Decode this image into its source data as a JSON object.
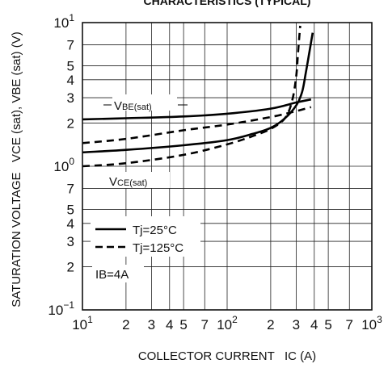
{
  "chart_data": {
    "type": "line",
    "title": "CHARACTERISTICS (TYPICAL)",
    "xlabel": "COLLECTOR CURRENT   IC (A)",
    "ylabel": "SATURATION VOLTAGE   VCE (sat), VBE (sat) (V)",
    "x_scale": "log",
    "y_scale": "log",
    "xlim": [
      10,
      1000
    ],
    "ylim": [
      0.1,
      10
    ],
    "grid": true,
    "x_ticks": [
      {
        "value": 10,
        "base": "10",
        "exp": "1"
      },
      {
        "value": 20,
        "base": "2",
        "exp": ""
      },
      {
        "value": 30,
        "base": "3",
        "exp": ""
      },
      {
        "value": 40,
        "base": "4",
        "exp": ""
      },
      {
        "value": 50,
        "base": "5",
        "exp": ""
      },
      {
        "value": 70,
        "base": "7",
        "exp": ""
      },
      {
        "value": 100,
        "base": "10",
        "exp": "2"
      },
      {
        "value": 200,
        "base": "2",
        "exp": ""
      },
      {
        "value": 300,
        "base": "3",
        "exp": ""
      },
      {
        "value": 400,
        "base": "4",
        "exp": ""
      },
      {
        "value": 500,
        "base": "5",
        "exp": ""
      },
      {
        "value": 700,
        "base": "7",
        "exp": ""
      },
      {
        "value": 1000,
        "base": "10",
        "exp": "3"
      }
    ],
    "y_ticks": [
      {
        "value": 10,
        "base": "10",
        "exp": "1"
      },
      {
        "value": 7,
        "base": "7",
        "exp": ""
      },
      {
        "value": 5,
        "base": "5",
        "exp": ""
      },
      {
        "value": 4,
        "base": "4",
        "exp": ""
      },
      {
        "value": 3,
        "base": "3",
        "exp": ""
      },
      {
        "value": 2,
        "base": "2",
        "exp": ""
      },
      {
        "value": 1,
        "base": "10",
        "exp": "0"
      },
      {
        "value": 0.7,
        "base": "7",
        "exp": ""
      },
      {
        "value": 0.5,
        "base": "5",
        "exp": ""
      },
      {
        "value": 0.4,
        "base": "4",
        "exp": ""
      },
      {
        "value": 0.3,
        "base": "3",
        "exp": ""
      },
      {
        "value": 0.2,
        "base": "2",
        "exp": ""
      },
      {
        "value": 0.1,
        "base": "10",
        "exp": "−1"
      }
    ],
    "series": [
      {
        "name": "VBE(sat) Tj=25°C",
        "style": "solid",
        "points": [
          [
            10,
            2.12
          ],
          [
            20,
            2.16
          ],
          [
            50,
            2.22
          ],
          [
            100,
            2.32
          ],
          [
            200,
            2.52
          ],
          [
            300,
            2.78
          ],
          [
            380,
            2.92
          ]
        ]
      },
      {
        "name": "VBE(sat) Tj=125°C",
        "style": "dashed",
        "points": [
          [
            10,
            1.45
          ],
          [
            20,
            1.55
          ],
          [
            50,
            1.78
          ],
          [
            100,
            1.95
          ],
          [
            200,
            2.2
          ],
          [
            300,
            2.42
          ],
          [
            380,
            2.58
          ]
        ]
      },
      {
        "name": "VCE(sat) Tj=25°C",
        "style": "solid",
        "points": [
          [
            10,
            1.25
          ],
          [
            20,
            1.3
          ],
          [
            50,
            1.4
          ],
          [
            100,
            1.52
          ],
          [
            150,
            1.68
          ],
          [
            200,
            1.85
          ],
          [
            250,
            2.15
          ],
          [
            300,
            2.65
          ],
          [
            330,
            3.3
          ],
          [
            350,
            4.5
          ],
          [
            370,
            6.2
          ],
          [
            390,
            8.5
          ]
        ]
      },
      {
        "name": "VCE(sat) Tj=125°C",
        "style": "dashed",
        "points": [
          [
            10,
            1.0
          ],
          [
            20,
            1.05
          ],
          [
            50,
            1.2
          ],
          [
            100,
            1.42
          ],
          [
            150,
            1.62
          ],
          [
            200,
            1.82
          ],
          [
            250,
            2.15
          ],
          [
            280,
            2.8
          ],
          [
            300,
            4.2
          ],
          [
            310,
            6.5
          ],
          [
            320,
            9.5
          ]
        ]
      }
    ],
    "annotations": [
      {
        "base": "V",
        "sub": "BE(sat)"
      },
      {
        "base": "V",
        "sub": "CE(sat)"
      },
      {
        "text": "IB=4A"
      }
    ],
    "legend": {
      "placement": "lower-left",
      "entries": [
        {
          "label": "Tj=25°C",
          "style": "solid"
        },
        {
          "label": "Tj=125°C",
          "style": "dashed"
        }
      ]
    }
  }
}
